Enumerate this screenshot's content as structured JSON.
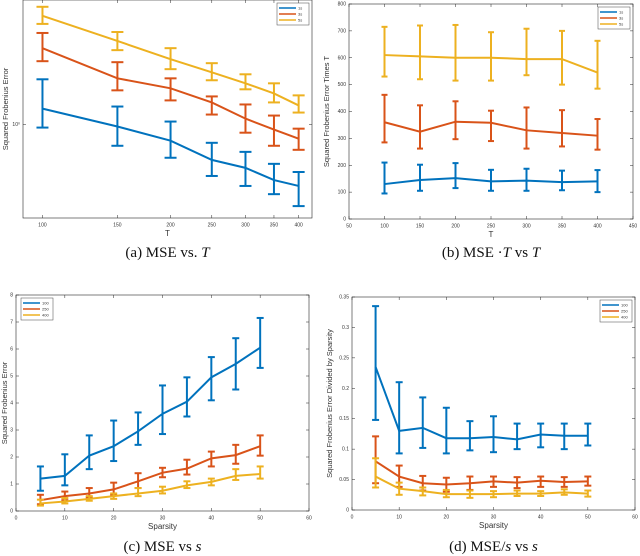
{
  "colors": {
    "series1": "#0072BD",
    "series2": "#D95319",
    "series3": "#EDB120",
    "axis": "#262626"
  },
  "chart_data": [
    {
      "type": "line",
      "error_bars": true,
      "caption": [
        "(a) MSE vs. ",
        "T"
      ],
      "xlabel": "T",
      "ylabel": "Squared Frobenius Error",
      "xscale": "log",
      "yscale": "log",
      "xlim": [
        90,
        430
      ],
      "ylim": [
        0.59,
        2.02
      ],
      "xticks": [
        100,
        150,
        200,
        250,
        300,
        350,
        400
      ],
      "xtick_labels": [
        "100",
        "150",
        "200",
        "250",
        "300",
        "350",
        "400"
      ],
      "yticks": [
        1
      ],
      "ytick_labels": [
        "10⁰"
      ],
      "legend": "top-right",
      "x": [
        100,
        150,
        200,
        250,
        300,
        350,
        400
      ],
      "series": [
        {
          "name": "1s",
          "values": [
            1.094,
            0.989,
            0.913,
            0.819,
            0.783,
            0.731,
            0.707
          ],
          "lower": [
            0.983,
            0.887,
            0.829,
            0.748,
            0.707,
            0.675,
            0.631
          ],
          "upper": [
            1.291,
            1.107,
            1.017,
            0.902,
            0.857,
            0.801,
            0.765
          ]
        },
        {
          "name": "3s",
          "values": [
            1.539,
            1.298,
            1.227,
            1.133,
            1.034,
            0.972,
            0.923
          ],
          "lower": [
            1.43,
            1.213,
            1.146,
            1.058,
            0.955,
            0.887,
            0.867
          ],
          "upper": [
            1.677,
            1.422,
            1.298,
            1.172,
            1.12,
            1.052,
            0.977
          ]
        },
        {
          "name": "5s",
          "values": [
            1.847,
            1.603,
            1.446,
            1.343,
            1.262,
            1.192,
            1.114
          ],
          "lower": [
            1.765,
            1.522,
            1.367,
            1.284,
            1.22,
            1.133,
            1.07
          ],
          "upper": [
            1.944,
            1.686,
            1.539,
            1.414,
            1.328,
            1.262,
            1.179
          ]
        }
      ]
    },
    {
      "type": "line",
      "error_bars": true,
      "caption": [
        "(b) MSE ·",
        "T",
        " vs ",
        "T"
      ],
      "xlabel": "T",
      "ylabel": "Squared Frobenius Error Times T",
      "xscale": "linear",
      "yscale": "linear",
      "xlim": [
        50,
        450
      ],
      "ylim": [
        0,
        800
      ],
      "xticks": [
        50,
        100,
        150,
        200,
        250,
        300,
        350,
        400,
        450
      ],
      "xtick_labels": [
        "50",
        "100",
        "150",
        "200",
        "250",
        "300",
        "350",
        "400",
        "450"
      ],
      "yticks": [
        0,
        100,
        200,
        300,
        400,
        500,
        600,
        700,
        800
      ],
      "ytick_labels": [
        "0",
        "100",
        "200",
        "300",
        "400",
        "500",
        "600",
        "700",
        "800"
      ],
      "legend": "top-right",
      "x": [
        100,
        150,
        200,
        250,
        300,
        350,
        400
      ],
      "series": [
        {
          "name": "1s",
          "values": [
            130,
            145,
            152,
            140,
            143,
            137,
            140
          ],
          "lower": [
            95,
            105,
            115,
            105,
            105,
            107,
            100
          ],
          "upper": [
            210,
            202,
            208,
            183,
            187,
            180,
            182
          ]
        },
        {
          "name": "3s",
          "values": [
            360,
            325,
            362,
            358,
            330,
            320,
            310
          ],
          "lower": [
            285,
            262,
            297,
            290,
            262,
            270,
            258
          ],
          "upper": [
            462,
            423,
            438,
            403,
            415,
            405,
            372
          ]
        },
        {
          "name": "5s",
          "values": [
            610,
            605,
            600,
            600,
            595,
            595,
            545
          ],
          "lower": [
            530,
            520,
            515,
            515,
            535,
            500,
            485
          ],
          "upper": [
            715,
            720,
            722,
            695,
            708,
            700,
            663
          ]
        }
      ]
    },
    {
      "type": "line",
      "error_bars": true,
      "caption": [
        "(c) MSE vs ",
        "s"
      ],
      "xlabel": "Sparsity",
      "ylabel": "Squared Frobenius Error",
      "xscale": "linear",
      "yscale": "linear",
      "xlim": [
        0,
        60
      ],
      "ylim": [
        0,
        8
      ],
      "xticks": [
        0,
        10,
        20,
        30,
        40,
        50,
        60
      ],
      "xtick_labels": [
        "0",
        "10",
        "20",
        "30",
        "40",
        "50",
        "60"
      ],
      "yticks": [
        0,
        1,
        2,
        3,
        4,
        5,
        6,
        7,
        8
      ],
      "ytick_labels": [
        "0",
        "1",
        "2",
        "3",
        "4",
        "5",
        "6",
        "7",
        "8"
      ],
      "legend": "top-left",
      "x": [
        5,
        10,
        15,
        20,
        25,
        30,
        35,
        40,
        45,
        50
      ],
      "series": [
        {
          "name": "100",
          "values": [
            1.2,
            1.3,
            2.05,
            2.4,
            2.95,
            3.6,
            4.05,
            4.95,
            5.45,
            6.05
          ],
          "lower": [
            0.75,
            0.95,
            1.55,
            1.85,
            2.45,
            2.85,
            3.5,
            4.1,
            4.5,
            5.3
          ],
          "upper": [
            1.65,
            2.1,
            2.8,
            3.35,
            3.65,
            4.65,
            4.95,
            5.7,
            6.4,
            7.15
          ]
        },
        {
          "name": "250",
          "values": [
            0.4,
            0.55,
            0.65,
            0.8,
            1.1,
            1.42,
            1.57,
            1.95,
            2.07,
            2.4
          ],
          "lower": [
            0.25,
            0.4,
            0.5,
            0.6,
            0.85,
            1.25,
            1.35,
            1.65,
            1.75,
            2.05
          ],
          "upper": [
            0.6,
            0.72,
            0.85,
            1.05,
            1.4,
            1.6,
            1.9,
            2.2,
            2.45,
            2.8
          ]
        },
        {
          "name": "400",
          "values": [
            0.28,
            0.35,
            0.45,
            0.55,
            0.65,
            0.75,
            0.95,
            1.08,
            1.3,
            1.37
          ],
          "lower": [
            0.2,
            0.28,
            0.38,
            0.45,
            0.55,
            0.65,
            0.85,
            0.95,
            1.15,
            1.2
          ],
          "upper": [
            0.42,
            0.48,
            0.55,
            0.65,
            0.85,
            0.9,
            1.1,
            1.2,
            1.55,
            1.65
          ]
        }
      ]
    },
    {
      "type": "line",
      "error_bars": true,
      "caption": [
        "(d) MSE/",
        "s",
        " vs ",
        "s"
      ],
      "xlabel": "Sparsity",
      "ylabel": "Squared Frobenius Error Divided by Sparsity",
      "xscale": "linear",
      "yscale": "linear",
      "xlim": [
        0,
        60
      ],
      "ylim": [
        0,
        0.35
      ],
      "xticks": [
        0,
        10,
        20,
        30,
        40,
        50,
        60
      ],
      "xtick_labels": [
        "0",
        "10",
        "20",
        "30",
        "40",
        "50",
        "60"
      ],
      "yticks": [
        0,
        0.05,
        0.1,
        0.15,
        0.2,
        0.25,
        0.3,
        0.35
      ],
      "ytick_labels": [
        "0",
        "0.05",
        "0.1",
        "0.15",
        "0.2",
        "0.25",
        "0.3",
        "0.35"
      ],
      "legend": "top-right",
      "x": [
        5,
        10,
        15,
        20,
        25,
        30,
        35,
        40,
        45,
        50
      ],
      "series": [
        {
          "name": "100",
          "values": [
            0.235,
            0.13,
            0.135,
            0.118,
            0.118,
            0.12,
            0.116,
            0.124,
            0.122,
            0.122
          ],
          "lower": [
            0.148,
            0.093,
            0.102,
            0.093,
            0.098,
            0.095,
            0.1,
            0.103,
            0.1,
            0.106
          ],
          "upper": [
            0.335,
            0.21,
            0.185,
            0.168,
            0.146,
            0.154,
            0.142,
            0.142,
            0.142,
            0.142
          ]
        },
        {
          "name": "250",
          "values": [
            0.08,
            0.055,
            0.044,
            0.042,
            0.044,
            0.047,
            0.045,
            0.048,
            0.046,
            0.047
          ],
          "lower": [
            0.044,
            0.038,
            0.032,
            0.03,
            0.033,
            0.038,
            0.036,
            0.038,
            0.038,
            0.04
          ],
          "upper": [
            0.121,
            0.073,
            0.056,
            0.053,
            0.055,
            0.055,
            0.054,
            0.055,
            0.054,
            0.055
          ]
        },
        {
          "name": "400",
          "values": [
            0.055,
            0.035,
            0.031,
            0.026,
            0.026,
            0.026,
            0.027,
            0.027,
            0.029,
            0.027
          ],
          "lower": [
            0.037,
            0.025,
            0.024,
            0.021,
            0.02,
            0.021,
            0.023,
            0.023,
            0.025,
            0.022
          ],
          "upper": [
            0.085,
            0.045,
            0.037,
            0.033,
            0.032,
            0.031,
            0.032,
            0.031,
            0.034,
            0.032
          ]
        }
      ]
    }
  ]
}
